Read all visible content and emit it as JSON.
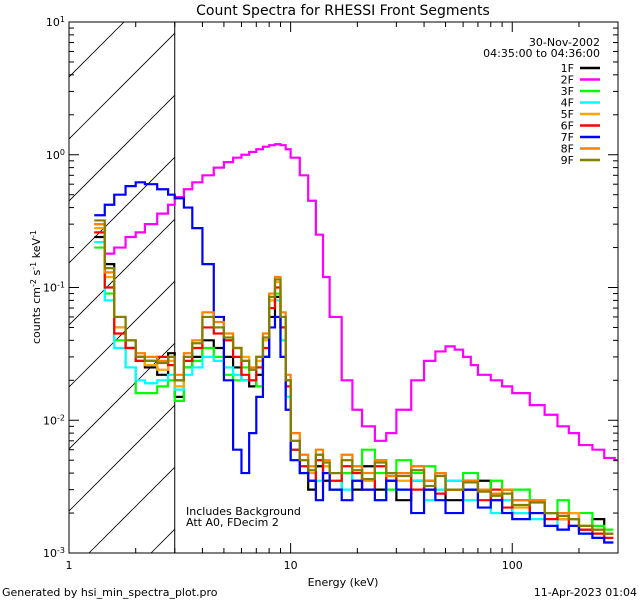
{
  "chart_data": {
    "type": "line",
    "title": "Count Spectra for RHESSI Front Segments",
    "xlabel": "Energy (keV)",
    "ylabel_html": "counts cm<tspan baseline-shift='super' font-size='8'>-2</tspan> s<tspan baseline-shift='super' font-size='8'>-1</tspan> keV<tspan baseline-shift='super' font-size='8'>-1</tspan>",
    "ylabel": "counts cm-2 s-1 keV-1",
    "xscale": "log",
    "yscale": "log",
    "xlim": [
      1,
      300
    ],
    "ylim": [
      0.001,
      10
    ],
    "x_ticks": [
      1,
      10,
      100
    ],
    "x_tick_labels": [
      "1",
      "10",
      "100"
    ],
    "y_ticks": [
      0.001,
      0.01,
      0.1,
      1,
      10
    ],
    "y_tick_labels": [
      "10",
      "10",
      "10",
      "10",
      "10"
    ],
    "y_tick_exps": [
      "-3",
      "-2",
      "-1",
      "0",
      "1"
    ],
    "hatched_region_upper_keV": 3,
    "legend_date": "30-Nov-2002",
    "legend_time": "04:35:00 to 04:36:00",
    "annotation_lines": [
      "Includes Background",
      "Att A0, FDecim 2"
    ],
    "footer_left": "Generated by hsi_min_spectra_plot.pro",
    "footer_right": "11-Apr-2023 01:04",
    "series": [
      {
        "name": "1F",
        "color": "#000000",
        "e": [
          1.3,
          1.45,
          1.6,
          1.8,
          2.0,
          2.2,
          2.5,
          2.8,
          3.0,
          3.3,
          3.6,
          4.0,
          4.5,
          5.0,
          5.5,
          6.0,
          6.5,
          7.0,
          7.5,
          8.0,
          8.5,
          9.0,
          9.5,
          10,
          11,
          12,
          13,
          14,
          15,
          17,
          19,
          21,
          24,
          27,
          30,
          35,
          40,
          45,
          50,
          60,
          70,
          80,
          90,
          100,
          120,
          140,
          160,
          180,
          200,
          230,
          260
        ],
        "y": [
          0.24,
          0.15,
          0.05,
          0.035,
          0.03,
          0.025,
          0.022,
          0.032,
          0.015,
          0.025,
          0.03,
          0.04,
          0.035,
          0.03,
          0.025,
          0.02,
          0.018,
          0.022,
          0.03,
          0.06,
          0.085,
          0.05,
          0.02,
          0.006,
          0.004,
          0.003,
          0.0045,
          0.0035,
          0.003,
          0.004,
          0.003,
          0.0045,
          0.003,
          0.004,
          0.0025,
          0.0035,
          0.003,
          0.004,
          0.0025,
          0.003,
          0.0035,
          0.0025,
          0.003,
          0.002,
          0.0025,
          0.002,
          0.0018,
          0.002,
          0.0015,
          0.0018,
          0.0014
        ]
      },
      {
        "name": "2F",
        "color": "#ff00ff",
        "e": [
          1.3,
          1.45,
          1.6,
          1.8,
          2.0,
          2.2,
          2.5,
          2.8,
          3.0,
          3.3,
          3.6,
          4.0,
          4.5,
          5.0,
          5.5,
          6.0,
          6.5,
          7.0,
          7.5,
          8.0,
          8.5,
          9.0,
          9.5,
          10,
          11,
          12,
          13,
          14,
          15,
          17,
          19,
          21,
          24,
          27,
          30,
          35,
          40,
          45,
          50,
          55,
          60,
          65,
          70,
          80,
          90,
          100,
          120,
          140,
          160,
          180,
          200,
          230,
          260,
          290
        ],
        "y": [
          0.3,
          0.18,
          0.2,
          0.24,
          0.26,
          0.3,
          0.36,
          0.42,
          0.48,
          0.55,
          0.62,
          0.7,
          0.8,
          0.88,
          0.95,
          1.0,
          1.05,
          1.1,
          1.15,
          1.18,
          1.2,
          1.18,
          1.1,
          0.95,
          0.7,
          0.45,
          0.25,
          0.12,
          0.06,
          0.02,
          0.012,
          0.009,
          0.007,
          0.008,
          0.012,
          0.02,
          0.028,
          0.033,
          0.036,
          0.034,
          0.03,
          0.026,
          0.022,
          0.02,
          0.018,
          0.016,
          0.013,
          0.011,
          0.009,
          0.008,
          0.0065,
          0.006,
          0.0052,
          0.005
        ]
      },
      {
        "name": "3F",
        "color": "#00ff00",
        "e": [
          1.3,
          1.45,
          1.6,
          1.8,
          2.0,
          2.2,
          2.5,
          2.8,
          3.0,
          3.3,
          3.6,
          4.0,
          4.5,
          5.0,
          5.5,
          6.0,
          6.5,
          7.0,
          7.5,
          8.0,
          8.5,
          9.0,
          9.5,
          10,
          11,
          12,
          13,
          14,
          15,
          17,
          19,
          21,
          24,
          27,
          30,
          35,
          40,
          45,
          50,
          60,
          70,
          80,
          90,
          100,
          120,
          140,
          160,
          180,
          200,
          230,
          260
        ],
        "y": [
          0.2,
          0.09,
          0.04,
          0.025,
          0.016,
          0.016,
          0.018,
          0.02,
          0.014,
          0.025,
          0.028,
          0.035,
          0.03,
          0.022,
          0.02,
          0.025,
          0.02,
          0.018,
          0.03,
          0.07,
          0.09,
          0.04,
          0.015,
          0.005,
          0.004,
          0.0035,
          0.005,
          0.0045,
          0.003,
          0.004,
          0.0035,
          0.006,
          0.004,
          0.003,
          0.005,
          0.004,
          0.0045,
          0.003,
          0.0035,
          0.004,
          0.003,
          0.0035,
          0.0025,
          0.003,
          0.0025,
          0.002,
          0.0025,
          0.0018,
          0.002,
          0.0016,
          0.0015
        ]
      },
      {
        "name": "4F",
        "color": "#00ffff",
        "e": [
          1.3,
          1.45,
          1.6,
          1.8,
          2.0,
          2.2,
          2.5,
          2.8,
          3.0,
          3.3,
          3.6,
          4.0,
          4.5,
          5.0,
          5.5,
          6.0,
          6.5,
          7.0,
          7.5,
          8.0,
          8.5,
          9.0,
          9.5,
          10,
          11,
          12,
          13,
          14,
          15,
          17,
          19,
          21,
          24,
          27,
          30,
          35,
          40,
          45,
          50,
          60,
          70,
          80,
          90,
          100,
          120,
          140,
          160,
          180,
          200,
          230,
          260
        ],
        "y": [
          0.22,
          0.08,
          0.035,
          0.025,
          0.02,
          0.019,
          0.02,
          0.022,
          0.017,
          0.022,
          0.025,
          0.03,
          0.028,
          0.025,
          0.022,
          0.02,
          0.02,
          0.025,
          0.04,
          0.07,
          0.08,
          0.04,
          0.015,
          0.006,
          0.0045,
          0.004,
          0.0035,
          0.0045,
          0.004,
          0.003,
          0.0045,
          0.0035,
          0.0025,
          0.004,
          0.003,
          0.0035,
          0.0025,
          0.003,
          0.0035,
          0.0025,
          0.003,
          0.002,
          0.0025,
          0.002,
          0.0018,
          0.002,
          0.0015,
          0.0018,
          0.0014,
          0.0013,
          0.0012
        ]
      },
      {
        "name": "5F",
        "color": "#ffa500",
        "e": [
          1.3,
          1.45,
          1.6,
          1.8,
          2.0,
          2.2,
          2.5,
          2.8,
          3.0,
          3.3,
          3.6,
          4.0,
          4.5,
          5.0,
          5.5,
          6.0,
          6.5,
          7.0,
          7.5,
          8.0,
          8.5,
          9.0,
          9.5,
          10,
          11,
          12,
          13,
          14,
          15,
          17,
          19,
          21,
          24,
          27,
          30,
          35,
          40,
          45,
          50,
          60,
          70,
          80,
          90,
          100,
          120,
          140,
          160,
          180,
          200,
          230,
          260
        ],
        "y": [
          0.28,
          0.12,
          0.05,
          0.035,
          0.028,
          0.026,
          0.024,
          0.028,
          0.018,
          0.03,
          0.035,
          0.06,
          0.05,
          0.04,
          0.035,
          0.03,
          0.025,
          0.028,
          0.04,
          0.08,
          0.11,
          0.06,
          0.02,
          0.007,
          0.005,
          0.004,
          0.0055,
          0.0045,
          0.004,
          0.005,
          0.004,
          0.0035,
          0.005,
          0.004,
          0.0035,
          0.0045,
          0.003,
          0.004,
          0.003,
          0.0035,
          0.003,
          0.0025,
          0.003,
          0.0022,
          0.0025,
          0.002,
          0.0018,
          0.002,
          0.0016,
          0.0015,
          0.0014
        ]
      },
      {
        "name": "6F",
        "color": "#ff0000",
        "e": [
          1.3,
          1.45,
          1.6,
          1.8,
          2.0,
          2.2,
          2.5,
          2.8,
          3.0,
          3.3,
          3.6,
          4.0,
          4.5,
          5.0,
          5.5,
          6.0,
          6.5,
          7.0,
          7.5,
          8.0,
          8.5,
          9.0,
          9.5,
          10,
          11,
          12,
          13,
          14,
          15,
          17,
          19,
          21,
          24,
          27,
          30,
          35,
          40,
          45,
          50,
          60,
          70,
          80,
          90,
          100,
          120,
          140,
          160,
          180,
          200,
          230,
          260
        ],
        "y": [
          0.26,
          0.1,
          0.045,
          0.035,
          0.028,
          0.028,
          0.03,
          0.026,
          0.02,
          0.028,
          0.035,
          0.05,
          0.045,
          0.04,
          0.03,
          0.022,
          0.02,
          0.025,
          0.035,
          0.07,
          0.1,
          0.05,
          0.018,
          0.006,
          0.0045,
          0.0035,
          0.005,
          0.004,
          0.0035,
          0.0045,
          0.004,
          0.003,
          0.0045,
          0.0035,
          0.004,
          0.003,
          0.0035,
          0.0028,
          0.003,
          0.0035,
          0.0025,
          0.003,
          0.0022,
          0.0025,
          0.002,
          0.0018,
          0.002,
          0.0016,
          0.0015,
          0.0014,
          0.0013
        ]
      },
      {
        "name": "7F",
        "color": "#0000ff",
        "e": [
          1.3,
          1.45,
          1.6,
          1.8,
          2.0,
          2.2,
          2.5,
          2.8,
          3.0,
          3.3,
          3.6,
          4.0,
          4.5,
          5.0,
          5.5,
          6.0,
          6.5,
          7.0,
          7.5,
          8.0,
          8.5,
          9.0,
          9.5,
          10,
          11,
          12,
          13,
          14,
          15,
          17,
          19,
          21,
          24,
          27,
          30,
          35,
          40,
          45,
          50,
          60,
          70,
          80,
          90,
          100,
          120,
          140,
          160,
          180,
          200,
          230,
          260
        ],
        "y": [
          0.35,
          0.42,
          0.5,
          0.58,
          0.62,
          0.6,
          0.55,
          0.5,
          0.47,
          0.4,
          0.28,
          0.15,
          0.06,
          0.02,
          0.006,
          0.004,
          0.008,
          0.015,
          0.03,
          0.05,
          0.06,
          0.03,
          0.012,
          0.005,
          0.004,
          0.0035,
          0.0025,
          0.004,
          0.003,
          0.0025,
          0.0035,
          0.003,
          0.0025,
          0.0035,
          0.003,
          0.002,
          0.003,
          0.0025,
          0.002,
          0.003,
          0.0022,
          0.0025,
          0.002,
          0.0018,
          0.002,
          0.0016,
          0.0015,
          0.0016,
          0.0014,
          0.0013,
          0.0012
        ]
      },
      {
        "name": "8F",
        "color": "#ff7f00",
        "e": [
          1.3,
          1.45,
          1.6,
          1.8,
          2.0,
          2.2,
          2.5,
          2.8,
          3.0,
          3.3,
          3.6,
          4.0,
          4.5,
          5.0,
          5.5,
          6.0,
          6.5,
          7.0,
          7.5,
          8.0,
          8.5,
          9.0,
          9.5,
          10,
          11,
          12,
          13,
          14,
          15,
          17,
          19,
          21,
          24,
          27,
          30,
          35,
          40,
          45,
          50,
          60,
          70,
          80,
          90,
          100,
          120,
          140,
          160,
          180,
          200,
          230,
          260
        ],
        "y": [
          0.3,
          0.13,
          0.06,
          0.04,
          0.032,
          0.03,
          0.028,
          0.03,
          0.022,
          0.032,
          0.04,
          0.065,
          0.055,
          0.045,
          0.035,
          0.028,
          0.025,
          0.03,
          0.045,
          0.09,
          0.12,
          0.065,
          0.022,
          0.008,
          0.0055,
          0.0045,
          0.006,
          0.005,
          0.004,
          0.0055,
          0.0045,
          0.004,
          0.005,
          0.0038,
          0.004,
          0.0045,
          0.0035,
          0.004,
          0.003,
          0.0035,
          0.003,
          0.0028,
          0.003,
          0.0025,
          0.0025,
          0.002,
          0.002,
          0.0018,
          0.0016,
          0.0015,
          0.0014
        ]
      },
      {
        "name": "9F",
        "color": "#808000",
        "e": [
          1.3,
          1.45,
          1.6,
          1.8,
          2.0,
          2.2,
          2.5,
          2.8,
          3.0,
          3.3,
          3.6,
          4.0,
          4.5,
          5.0,
          5.5,
          6.0,
          6.5,
          7.0,
          7.5,
          8.0,
          8.5,
          9.0,
          9.5,
          10,
          11,
          12,
          13,
          14,
          15,
          17,
          19,
          21,
          24,
          27,
          30,
          35,
          40,
          45,
          50,
          60,
          70,
          80,
          90,
          100,
          120,
          140,
          160,
          180,
          200,
          230,
          260
        ],
        "y": [
          0.32,
          0.14,
          0.06,
          0.04,
          0.03,
          0.028,
          0.027,
          0.03,
          0.02,
          0.03,
          0.038,
          0.06,
          0.05,
          0.042,
          0.035,
          0.028,
          0.024,
          0.03,
          0.042,
          0.085,
          0.115,
          0.06,
          0.02,
          0.007,
          0.005,
          0.0042,
          0.0055,
          0.0048,
          0.004,
          0.005,
          0.0042,
          0.0036,
          0.0048,
          0.004,
          0.0038,
          0.0042,
          0.0032,
          0.0038,
          0.003,
          0.0034,
          0.0029,
          0.0027,
          0.0028,
          0.0023,
          0.0024,
          0.002,
          0.0019,
          0.0018,
          0.0016,
          0.0015,
          0.0014
        ]
      }
    ]
  }
}
